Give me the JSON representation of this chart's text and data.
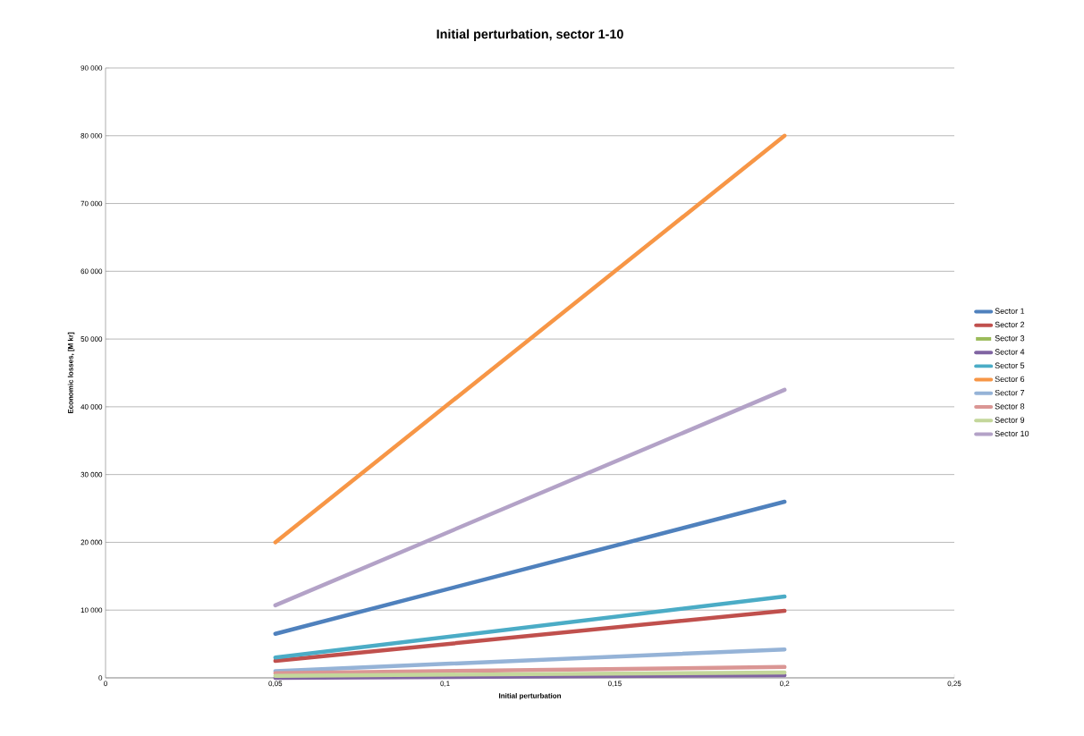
{
  "chart_data": {
    "type": "line",
    "title": "Initial perturbation, sector 1-10",
    "xlabel": "Initial perturbation",
    "ylabel": "Economic losses, [M kr]",
    "x": [
      0.05,
      0.2
    ],
    "series": [
      {
        "name": "Sector 1",
        "color": "#4f81bd",
        "values": [
          6500,
          26000
        ]
      },
      {
        "name": "Sector 2",
        "color": "#c0504d",
        "values": [
          2500,
          9900
        ]
      },
      {
        "name": "Sector 3",
        "color": "#9bbb59",
        "values": [
          null,
          null
        ]
      },
      {
        "name": "Sector 4",
        "color": "#8064a2",
        "values": [
          0,
          400
        ]
      },
      {
        "name": "Sector 5",
        "color": "#4bacc6",
        "values": [
          3000,
          12000
        ]
      },
      {
        "name": "Sector 6",
        "color": "#f79646",
        "values": [
          20000,
          80000
        ]
      },
      {
        "name": "Sector 7",
        "color": "#95b3d7",
        "values": [
          1000,
          4200
        ]
      },
      {
        "name": "Sector 8",
        "color": "#da9694",
        "values": [
          700,
          1600
        ]
      },
      {
        "name": "Sector 9",
        "color": "#c4d79b",
        "values": [
          300,
          800
        ]
      },
      {
        "name": "Sector 10",
        "color": "#b3a2c7",
        "values": [
          10700,
          42500
        ]
      }
    ],
    "xlim": [
      0,
      0.25
    ],
    "xticks": [
      {
        "value": 0,
        "label": "0"
      },
      {
        "value": 0.05,
        "label": "0,05"
      },
      {
        "value": 0.1,
        "label": "0,1"
      },
      {
        "value": 0.15,
        "label": "0,15"
      },
      {
        "value": 0.2,
        "label": "0,2"
      },
      {
        "value": 0.25,
        "label": "0,25"
      }
    ],
    "ylim": [
      0,
      90000
    ],
    "yticks": [
      {
        "value": 0,
        "label": "0"
      },
      {
        "value": 10000,
        "label": "10 000"
      },
      {
        "value": 20000,
        "label": "20 000"
      },
      {
        "value": 30000,
        "label": "30 000"
      },
      {
        "value": 40000,
        "label": "40 000"
      },
      {
        "value": 50000,
        "label": "50 000"
      },
      {
        "value": 60000,
        "label": "60 000"
      },
      {
        "value": 70000,
        "label": "70 000"
      },
      {
        "value": 80000,
        "label": "80 000"
      },
      {
        "value": 90000,
        "label": "90 000"
      }
    ],
    "grid": "y",
    "legend": "right",
    "marker": "none",
    "line_style": "solid"
  }
}
